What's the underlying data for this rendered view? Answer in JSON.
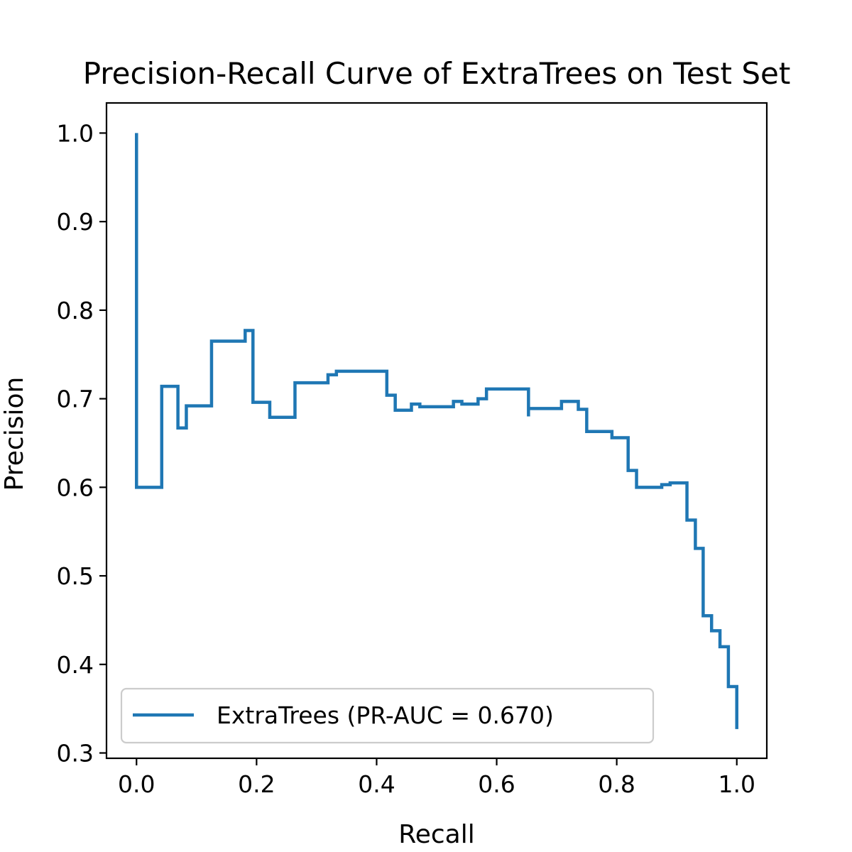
{
  "chart_data": {
    "type": "line",
    "drawstyle": "steps-post",
    "title": "Precision-Recall Curve of ExtraTrees on Test Set",
    "xlabel": "Recall",
    "ylabel": "Precision",
    "xlim": [
      -0.05,
      1.05
    ],
    "ylim": [
      0.294,
      1.034
    ],
    "xticks": [
      0.0,
      0.2,
      0.4,
      0.6,
      0.8,
      1.0
    ],
    "xtick_labels": [
      "0.0",
      "0.2",
      "0.4",
      "0.6",
      "0.8",
      "1.0"
    ],
    "yticks": [
      0.3,
      0.4,
      0.5,
      0.6,
      0.7,
      0.8,
      0.9,
      1.0
    ],
    "ytick_labels": [
      "0.3",
      "0.4",
      "0.5",
      "0.6",
      "0.7",
      "0.8",
      "0.9",
      "1.0"
    ],
    "grid": false,
    "legend_position": "lower-left",
    "series": [
      {
        "name": "ExtraTrees (PR-AUC = 0.670)",
        "color": "#1f77b4",
        "points": [
          [
            0.0,
            1.0
          ],
          [
            0.0,
            0.6
          ],
          [
            0.042,
            0.6
          ],
          [
            0.042,
            0.714
          ],
          [
            0.069,
            0.714
          ],
          [
            0.069,
            0.667
          ],
          [
            0.083,
            0.667
          ],
          [
            0.083,
            0.692
          ],
          [
            0.125,
            0.692
          ],
          [
            0.125,
            0.765
          ],
          [
            0.181,
            0.765
          ],
          [
            0.181,
            0.777
          ],
          [
            0.194,
            0.777
          ],
          [
            0.194,
            0.696
          ],
          [
            0.222,
            0.696
          ],
          [
            0.222,
            0.679
          ],
          [
            0.264,
            0.679
          ],
          [
            0.264,
            0.718
          ],
          [
            0.319,
            0.718
          ],
          [
            0.319,
            0.727
          ],
          [
            0.333,
            0.727
          ],
          [
            0.333,
            0.731
          ],
          [
            0.417,
            0.731
          ],
          [
            0.417,
            0.704
          ],
          [
            0.431,
            0.704
          ],
          [
            0.431,
            0.687
          ],
          [
            0.458,
            0.687
          ],
          [
            0.458,
            0.694
          ],
          [
            0.472,
            0.694
          ],
          [
            0.472,
            0.691
          ],
          [
            0.528,
            0.691
          ],
          [
            0.528,
            0.697
          ],
          [
            0.542,
            0.697
          ],
          [
            0.542,
            0.694
          ],
          [
            0.569,
            0.694
          ],
          [
            0.569,
            0.7
          ],
          [
            0.583,
            0.7
          ],
          [
            0.583,
            0.711
          ],
          [
            0.653,
            0.711
          ],
          [
            0.653,
            0.68
          ],
          [
            0.653,
            0.689
          ],
          [
            0.708,
            0.689
          ],
          [
            0.708,
            0.697
          ],
          [
            0.736,
            0.697
          ],
          [
            0.736,
            0.688
          ],
          [
            0.75,
            0.688
          ],
          [
            0.75,
            0.663
          ],
          [
            0.792,
            0.663
          ],
          [
            0.792,
            0.656
          ],
          [
            0.819,
            0.656
          ],
          [
            0.819,
            0.619
          ],
          [
            0.833,
            0.619
          ],
          [
            0.833,
            0.6
          ],
          [
            0.875,
            0.6
          ],
          [
            0.875,
            0.603
          ],
          [
            0.889,
            0.603
          ],
          [
            0.889,
            0.605
          ],
          [
            0.917,
            0.605
          ],
          [
            0.917,
            0.563
          ],
          [
            0.931,
            0.563
          ],
          [
            0.931,
            0.531
          ],
          [
            0.944,
            0.531
          ],
          [
            0.944,
            0.455
          ],
          [
            0.958,
            0.455
          ],
          [
            0.958,
            0.438
          ],
          [
            0.972,
            0.438
          ],
          [
            0.972,
            0.42
          ],
          [
            0.986,
            0.42
          ],
          [
            0.986,
            0.375
          ],
          [
            1.0,
            0.375
          ],
          [
            1.0,
            0.327
          ]
        ]
      }
    ]
  }
}
